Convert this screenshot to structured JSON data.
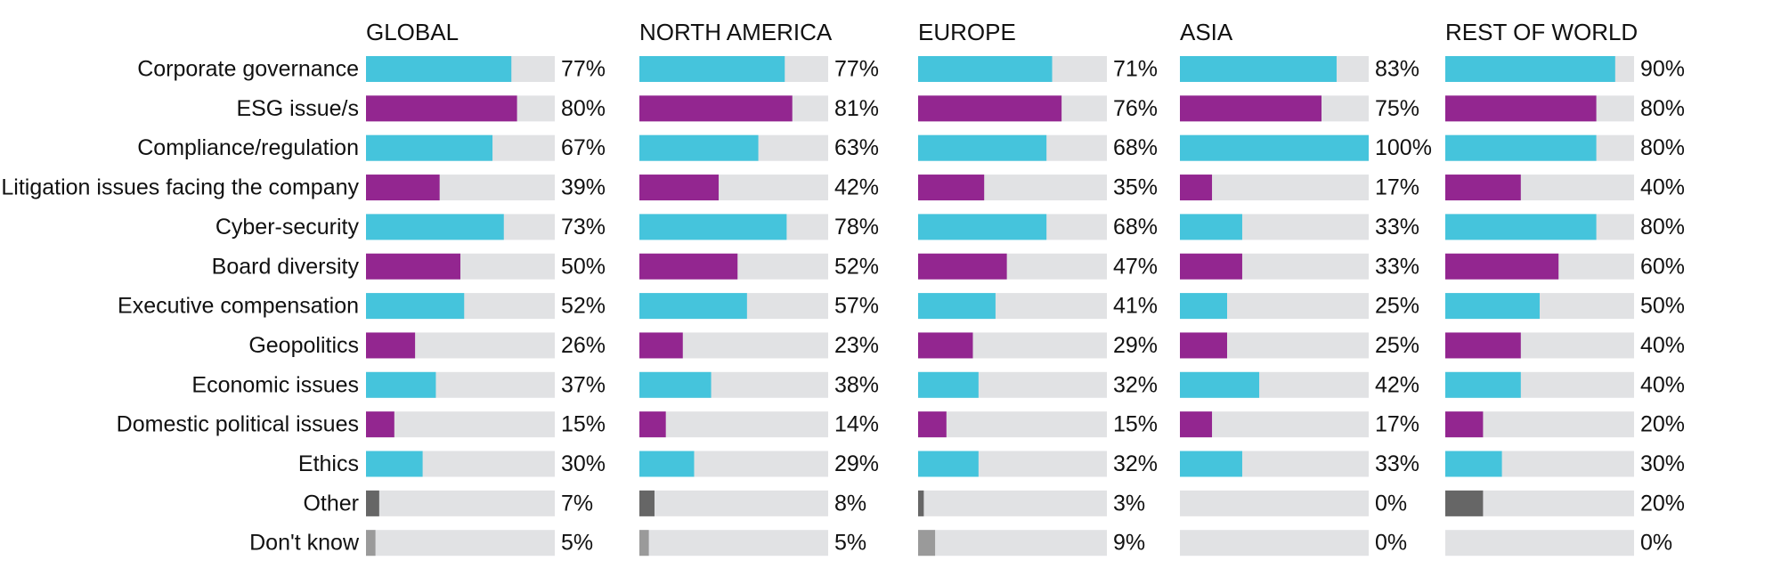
{
  "colors": {
    "teal": "#45C4DC",
    "purple": "#932690",
    "dark_gray": "#666666",
    "light_gray": "#9A9A9A",
    "track": "#E1E2E4"
  },
  "chart_data": {
    "type": "bar",
    "orientation": "horizontal",
    "xlim": [
      0,
      100
    ],
    "grid": false,
    "categories": [
      "Corporate governance",
      "ESG issue/s",
      "Compliance/regulation",
      "Litigation issues facing the company",
      "Cyber-security",
      "Board diversity",
      "Executive compensation",
      "Geopolitics",
      "Economic issues",
      "Domestic political issues",
      "Ethics",
      "Other",
      "Don't know"
    ],
    "bar_colors": [
      "teal",
      "purple",
      "teal",
      "purple",
      "teal",
      "purple",
      "teal",
      "purple",
      "teal",
      "purple",
      "teal",
      "dark_gray",
      "light_gray"
    ],
    "series": [
      {
        "name": "GLOBAL",
        "values": [
          77,
          80,
          67,
          39,
          73,
          50,
          52,
          26,
          37,
          15,
          30,
          7,
          5
        ],
        "labels": [
          "77%",
          "80%",
          "67%",
          "39%",
          "73%",
          "50%",
          "52%",
          "26%",
          "37%",
          "15%",
          "30%",
          "7%",
          "5%"
        ]
      },
      {
        "name": "NORTH AMERICA",
        "values": [
          77,
          81,
          63,
          42,
          78,
          52,
          57,
          23,
          38,
          14,
          29,
          8,
          5
        ],
        "labels": [
          "77%",
          "81%",
          "63%",
          "42%",
          "78%",
          "52%",
          "57%",
          "23%",
          "38%",
          "14%",
          "29%",
          "8%",
          "5%"
        ]
      },
      {
        "name": "EUROPE",
        "values": [
          71,
          76,
          68,
          35,
          68,
          47,
          41,
          29,
          32,
          15,
          32,
          3,
          9
        ],
        "labels": [
          "71%",
          "76%",
          "68%",
          "35%",
          "68%",
          "47%",
          "41%",
          "29%",
          "32%",
          "15%",
          "32%",
          "3%",
          "9%"
        ]
      },
      {
        "name": "ASIA",
        "values": [
          83,
          75,
          100,
          17,
          33,
          33,
          25,
          25,
          42,
          17,
          33,
          0,
          0
        ],
        "labels": [
          "83%",
          "75%",
          "100%",
          "17%",
          "33%",
          "33%",
          "25%",
          "25%",
          "42%",
          "17%",
          "33%",
          "0%",
          "0%"
        ]
      },
      {
        "name": "REST OF WORLD",
        "values": [
          90,
          80,
          80,
          40,
          80,
          60,
          50,
          40,
          40,
          20,
          30,
          20,
          0
        ],
        "labels": [
          "90%",
          "80%",
          "80%",
          "40%",
          "80%",
          "60%",
          "50%",
          "40%",
          "40%",
          "20%",
          "30%",
          "20%",
          "0%"
        ]
      }
    ]
  }
}
